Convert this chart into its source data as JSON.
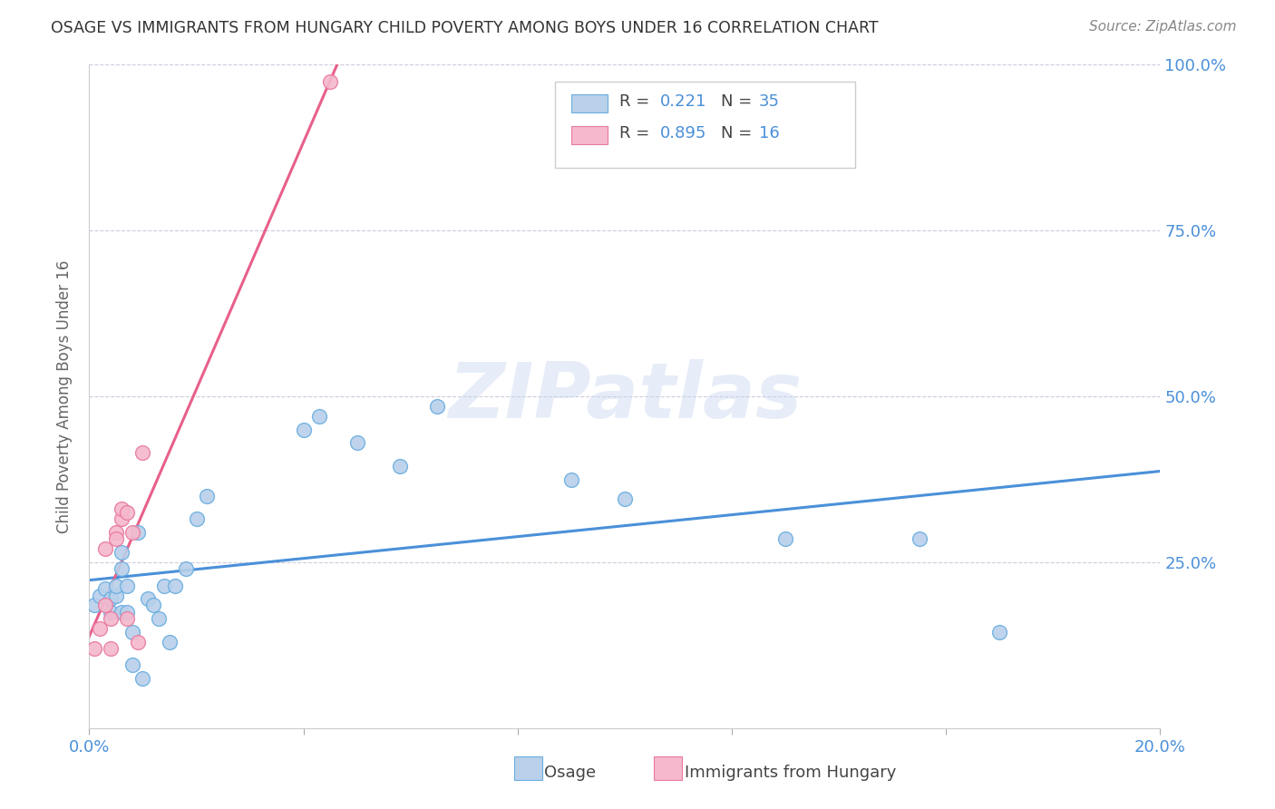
{
  "title": "OSAGE VS IMMIGRANTS FROM HUNGARY CHILD POVERTY AMONG BOYS UNDER 16 CORRELATION CHART",
  "source": "Source: ZipAtlas.com",
  "ylabel": "Child Poverty Among Boys Under 16",
  "xlim": [
    0.0,
    0.2
  ],
  "ylim": [
    0.0,
    1.0
  ],
  "xticks": [
    0.0,
    0.04,
    0.08,
    0.12,
    0.16,
    0.2
  ],
  "yticks": [
    0.0,
    0.25,
    0.5,
    0.75,
    1.0
  ],
  "watermark": "ZIPatlas",
  "r_osage": 0.221,
  "n_osage": 35,
  "r_hungary": 0.895,
  "n_hungary": 16,
  "osage_fill": "#b8d0ea",
  "osage_edge": "#6aaee0",
  "hungary_fill": "#f5b8cc",
  "hungary_edge": "#e87aa0",
  "osage_line_color": "#4a90d9",
  "hungary_line_color": "#e8608a",
  "title_color": "#333333",
  "axis_label_color": "#666666",
  "tick_color": "#4a90d9",
  "grid_color": "#ccccdd",
  "background_color": "#ffffff",
  "osage_x": [
    0.001,
    0.002,
    0.003,
    0.004,
    0.004,
    0.005,
    0.005,
    0.006,
    0.006,
    0.006,
    0.007,
    0.007,
    0.008,
    0.008,
    0.009,
    0.01,
    0.011,
    0.012,
    0.013,
    0.014,
    0.015,
    0.016,
    0.018,
    0.02,
    0.022,
    0.04,
    0.043,
    0.05,
    0.058,
    0.065,
    0.09,
    0.1,
    0.13,
    0.155,
    0.17
  ],
  "osage_y": [
    0.185,
    0.2,
    0.21,
    0.195,
    0.175,
    0.2,
    0.215,
    0.24,
    0.265,
    0.175,
    0.215,
    0.175,
    0.145,
    0.095,
    0.295,
    0.075,
    0.195,
    0.185,
    0.165,
    0.215,
    0.13,
    0.215,
    0.24,
    0.315,
    0.35,
    0.45,
    0.47,
    0.43,
    0.395,
    0.485,
    0.375,
    0.345,
    0.285,
    0.285,
    0.145
  ],
  "hungary_x": [
    0.001,
    0.002,
    0.003,
    0.003,
    0.004,
    0.004,
    0.005,
    0.005,
    0.006,
    0.006,
    0.007,
    0.007,
    0.008,
    0.009,
    0.01,
    0.045
  ],
  "hungary_y": [
    0.12,
    0.15,
    0.185,
    0.27,
    0.12,
    0.165,
    0.295,
    0.285,
    0.315,
    0.33,
    0.325,
    0.165,
    0.295,
    0.13,
    0.415,
    0.975
  ]
}
